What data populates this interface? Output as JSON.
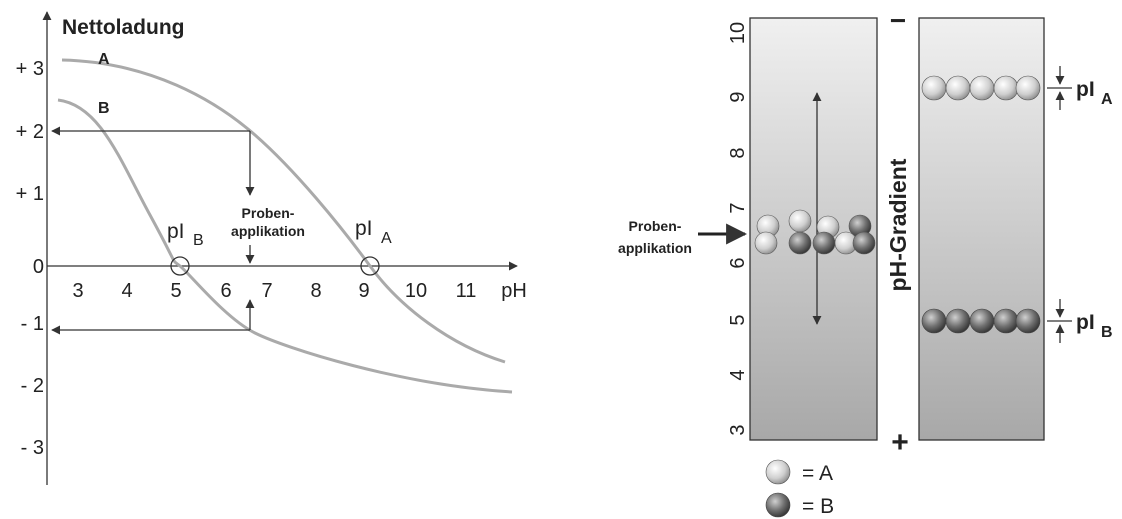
{
  "left_graph": {
    "y_axis_title": "Nettoladung",
    "y_labels": [
      "+ 3",
      "+ 2",
      "+ 1",
      "0",
      "- 1",
      "- 2",
      "- 3"
    ],
    "x_labels": [
      "3",
      "4",
      "5",
      "6",
      "7",
      "8",
      "9",
      "10",
      "11"
    ],
    "x_axis_title": "pH",
    "curve_labels": [
      "A",
      "B"
    ],
    "pI_B": {
      "text": "pI",
      "subscript": "B"
    },
    "pI_A": {
      "text": "pI",
      "subscript": "A"
    },
    "application_label": [
      "Proben-",
      "applikation"
    ]
  },
  "right_graph": {
    "ph_labels": [
      "10",
      "9",
      "8",
      "7",
      "6",
      "5",
      "4",
      "3"
    ],
    "gradient_label": "pH-Gradient",
    "cathode": "−",
    "anode": "+",
    "application_label": [
      "Proben-",
      "applikation"
    ],
    "pI_A": {
      "text": "pI",
      "subscript": "A"
    },
    "pI_B": {
      "text": "pI",
      "subscript": "B"
    }
  },
  "legend": [
    "= A",
    "= B"
  ]
}
